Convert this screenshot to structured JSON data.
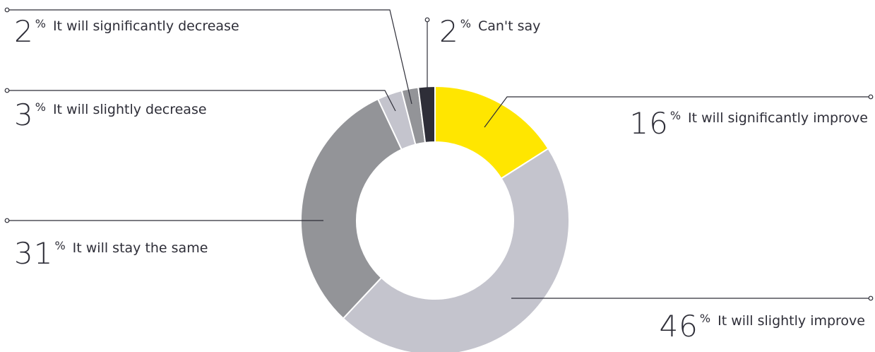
{
  "chart_data": {
    "type": "pie",
    "style": "donut",
    "percent_symbol": "%",
    "slices": [
      {
        "value": 16,
        "label": "It will significantly improve",
        "color": "#ffe600"
      },
      {
        "value": 46,
        "label": "It will slightly improve",
        "color": "#c4c4cd"
      },
      {
        "value": 31,
        "label": "It will stay the same",
        "color": "#939498"
      },
      {
        "value": 3,
        "label": "It will slightly decrease",
        "color": "#c4c4cd"
      },
      {
        "value": 2,
        "label": "It will significantly decrease",
        "color": "#939498"
      },
      {
        "value": 2,
        "label": "Can't say",
        "color": "#2e2e38"
      }
    ]
  }
}
